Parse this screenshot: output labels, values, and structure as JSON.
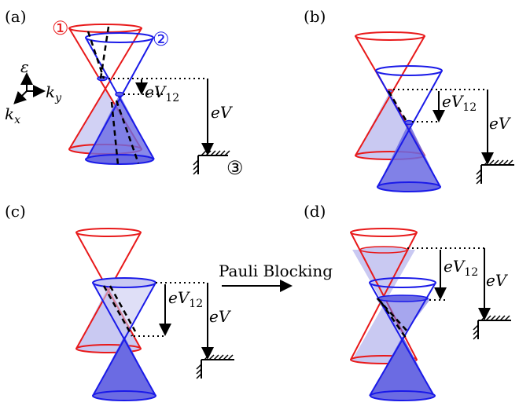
{
  "panels": {
    "a": {
      "label": "(a)"
    },
    "b": {
      "label": "(b)"
    },
    "c": {
      "label": "(c)"
    },
    "d": {
      "label": "(d)"
    }
  },
  "markers": {
    "cone1": "①",
    "cone2": "②",
    "contact3": "③"
  },
  "axes": {
    "energy": "ε",
    "ky_main": "k",
    "ky_sub": "y",
    "kx_main": "k",
    "kx_sub": "x"
  },
  "labels": {
    "eV12_main": "eV",
    "eV12_sub": "12",
    "eV": "eV",
    "pauli": "Pauli Blocking"
  },
  "colors": {
    "red": "#e8191a",
    "blue": "#1a1ae8",
    "fill_red": "#c9c9f2",
    "fill_blue": "#6b6be3"
  }
}
